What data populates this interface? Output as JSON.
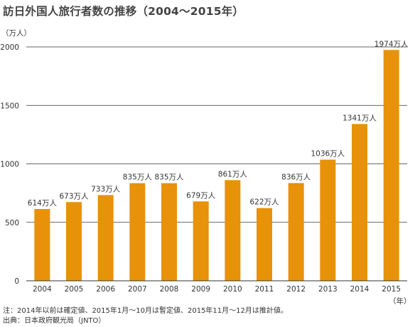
{
  "title": "訪日外国人旅行者数の推移（2004〜2015年）",
  "chart_data": {
    "type": "bar",
    "title": "訪日外国人旅行者数の推移（2004〜2015年）",
    "categories": [
      "2004",
      "2005",
      "2006",
      "2007",
      "2008",
      "2009",
      "2010",
      "2011",
      "2012",
      "2013",
      "2014",
      "2015"
    ],
    "values": [
      614,
      673,
      733,
      835,
      835,
      679,
      861,
      622,
      836,
      1036,
      1341,
      1974
    ],
    "data_labels": [
      "614万人",
      "673万人",
      "733万人",
      "835万人",
      "835万人",
      "679万人",
      "861万人",
      "622万人",
      "836万人",
      "1036万人",
      "1341万人",
      "1974万人"
    ],
    "yticks": [
      0,
      500,
      1000,
      1500,
      2000
    ],
    "ytick_labels": [
      "0",
      "500",
      "1000",
      "1500",
      "2000"
    ],
    "ylim": [
      0,
      2000
    ],
    "ylabel": "（万人）",
    "xlabel": "（年）",
    "bar_color": "#E8920A",
    "grid": true
  },
  "notes": [
    "注：2014年以前は確定値、2015年1月〜10月は暫定値、2015年11月〜12月は推計値。",
    "出典：日本政府観光局（JNTO）"
  ]
}
